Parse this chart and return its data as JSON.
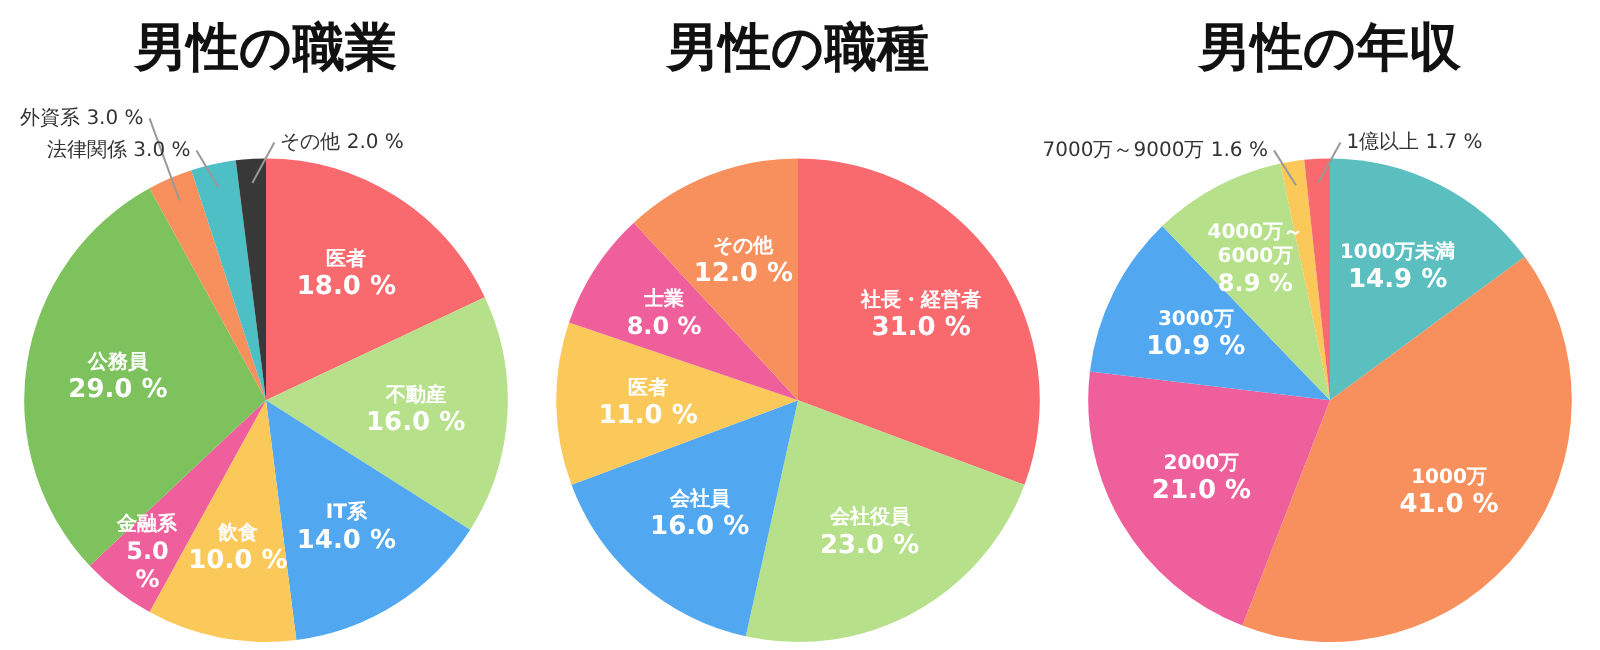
{
  "chart_data": [
    {
      "type": "pie",
      "title": "男性の職業",
      "categories": [
        "医者",
        "不動産",
        "IT系",
        "飲食",
        "金融系",
        "公務員",
        "外資系",
        "法律関係",
        "その他"
      ],
      "values": [
        18,
        16,
        14,
        10,
        5,
        29,
        3,
        3,
        2
      ],
      "colors": [
        "#f86a6e",
        "#b6e08a",
        "#52a8f0",
        "#fbc95a",
        "#ef5f9c",
        "#7dc25d",
        "#f7905d",
        "#4ebfc4",
        "#383838"
      ],
      "value_labels": [
        "18.0 %",
        "16.0 %",
        "14.0 %",
        "10.0 %",
        "5.0 %",
        "29.0 %",
        "3.0 %",
        "3.0 %",
        "2.0 %"
      ]
    },
    {
      "type": "pie",
      "title": "男性の職種",
      "categories": [
        "社長・経営者",
        "会社役員",
        "会社員",
        "医者",
        "士業",
        "その他"
      ],
      "values": [
        31,
        23,
        16,
        11,
        8,
        12
      ],
      "colors": [
        "#f86a6e",
        "#b6e08a",
        "#52a8f0",
        "#fbc95a",
        "#ef5f9c",
        "#f7905d"
      ],
      "value_labels": [
        "31.0 %",
        "23.0 %",
        "16.0 %",
        "11.0 %",
        "8.0 %",
        "12.0 %"
      ]
    },
    {
      "type": "pie",
      "title": "男性の年収",
      "categories": [
        "1000万未満",
        "1000万",
        "2000万",
        "3000万",
        "4000万～6000万",
        "7000万～9000万",
        "1億以上"
      ],
      "values": [
        14.9,
        41.0,
        21.0,
        10.9,
        8.9,
        1.6,
        1.7
      ],
      "colors": [
        "#5bbfbf",
        "#f7905d",
        "#ef5f9c",
        "#52a8f0",
        "#b6e08a",
        "#fbc95a",
        "#f86a6e"
      ],
      "value_labels": [
        "14.9 %",
        "41.0 %",
        "21.0 %",
        "10.9 %",
        "8.9 %",
        "1.6 %",
        "1.7 %"
      ]
    }
  ]
}
